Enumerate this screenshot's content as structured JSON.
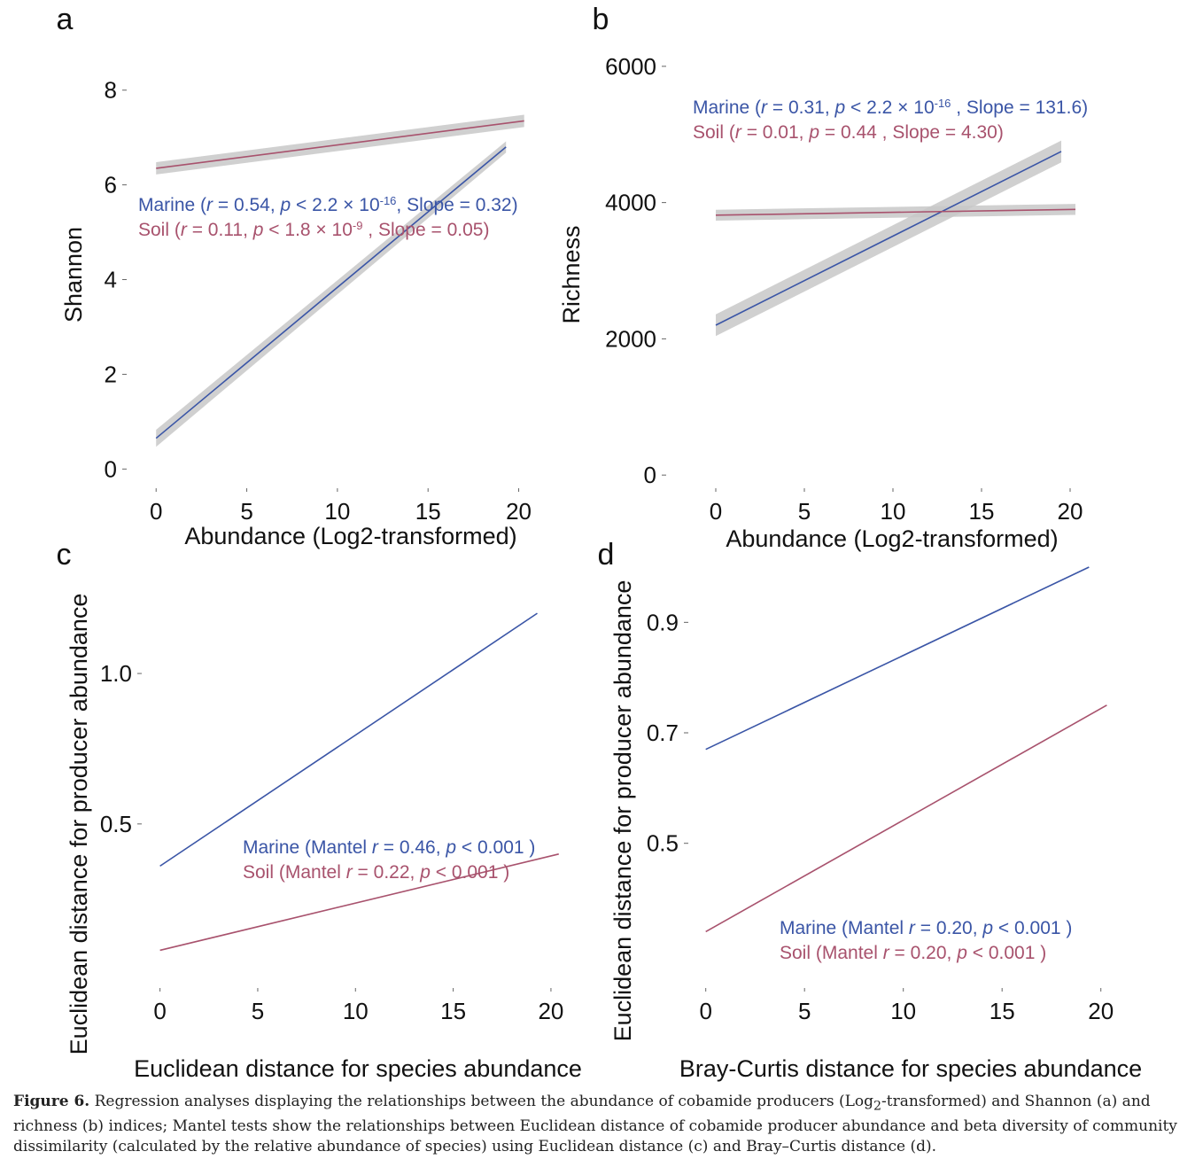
{
  "chart_data": [
    {
      "panel_label": "a",
      "type": "line",
      "xlabel": "Abundance (Log2-transformed)",
      "ylabel": "Shannon",
      "xlim": [
        -0.5,
        21
      ],
      "ylim": [
        -0.2,
        8.5
      ],
      "xticks": [
        0,
        5,
        10,
        15,
        20
      ],
      "yticks": [
        0,
        2,
        4,
        6,
        8
      ],
      "x_tick_labels": [
        "0",
        "5",
        "10",
        "15",
        "20"
      ],
      "y_tick_labels": [
        "0",
        "2",
        "4",
        "6",
        "8"
      ],
      "grid": false,
      "confidence_band": true,
      "series": [
        {
          "name": "Marine",
          "color": "#3a55a6",
          "x": [
            0,
            19.3
          ],
          "y": [
            0.65,
            6.8
          ],
          "band": [
            0.18,
            0.12
          ]
        },
        {
          "name": "Soil",
          "color": "#a8526d",
          "x": [
            0,
            20.3
          ],
          "y": [
            6.35,
            7.35
          ],
          "band": [
            0.13,
            0.13
          ]
        }
      ],
      "annotation": {
        "lines": [
          {
            "color": "#3a55a6",
            "parts": [
              {
                "t": "Marine ("
              },
              {
                "t": "r",
                "it": true
              },
              {
                "t": " = 0.54, "
              },
              {
                "t": "p",
                "it": true
              },
              {
                "t": " < 2.2 × 10"
              },
              {
                "t": "-16",
                "sup": true
              },
              {
                "t": ", Slope = 0.32)"
              }
            ]
          },
          {
            "color": "#a8526d",
            "parts": [
              {
                "t": "Soil ("
              },
              {
                "t": "r",
                "it": true
              },
              {
                "t": " = 0.11, "
              },
              {
                "t": "p",
                "it": true
              },
              {
                "t": " < 1.8 × 10"
              },
              {
                "t": "-9",
                "sup": true
              },
              {
                "t": " , Slope = 0.05)"
              }
            ]
          }
        ]
      }
    },
    {
      "panel_label": "b",
      "type": "line",
      "xlabel": "Abundance (Log2-transformed)",
      "ylabel": "Richness",
      "xlim": [
        -0.5,
        21
      ],
      "ylim": [
        -50,
        6050
      ],
      "xticks": [
        0,
        5,
        10,
        15,
        20
      ],
      "yticks": [
        0,
        2000,
        4000,
        6000
      ],
      "x_tick_labels": [
        "0",
        "5",
        "10",
        "15",
        "20"
      ],
      "y_tick_labels": [
        "0",
        "2000",
        "4000",
        "6000"
      ],
      "grid": false,
      "confidence_band": true,
      "series": [
        {
          "name": "Marine",
          "color": "#3a55a6",
          "x": [
            0,
            19.5
          ],
          "y": [
            2200,
            4750
          ],
          "band": [
            160,
            160
          ]
        },
        {
          "name": "Soil",
          "color": "#a8526d",
          "x": [
            0,
            20.3
          ],
          "y": [
            3815,
            3900
          ],
          "band": [
            80,
            80
          ]
        }
      ],
      "annotation": {
        "lines": [
          {
            "color": "#3a55a6",
            "parts": [
              {
                "t": "Marine ("
              },
              {
                "t": "r",
                "it": true
              },
              {
                "t": " = 0.31, "
              },
              {
                "t": "p",
                "it": true
              },
              {
                "t": " < 2.2 × 10"
              },
              {
                "t": "-16",
                "sup": true
              },
              {
                "t": " , Slope = 131.6)"
              }
            ]
          },
          {
            "color": "#a8526d",
            "parts": [
              {
                "t": "Soil ("
              },
              {
                "t": "r",
                "it": true
              },
              {
                "t": " = 0.01, "
              },
              {
                "t": "p",
                "it": true
              },
              {
                "t": " = 0.44 , Slope = 4.30)"
              }
            ]
          }
        ]
      }
    },
    {
      "panel_label": "c",
      "type": "line",
      "xlabel": "Euclidean distance for species abundance",
      "ylabel": "Euclidean distance for producer abundance",
      "xlim": [
        -0.3,
        21
      ],
      "ylim": [
        -0.06,
        1.33
      ],
      "xticks": [
        0,
        5,
        10,
        15,
        20
      ],
      "yticks": [
        0.5,
        1.0
      ],
      "x_tick_labels": [
        "0",
        "5",
        "10",
        "15",
        "20"
      ],
      "y_tick_labels": [
        "0.5",
        "1.0"
      ],
      "grid": false,
      "confidence_band": false,
      "series": [
        {
          "name": "Marine",
          "color": "#3a55a6",
          "x": [
            0,
            19.3
          ],
          "y": [
            0.36,
            1.2
          ]
        },
        {
          "name": "Soil",
          "color": "#a8526d",
          "x": [
            0,
            20.4
          ],
          "y": [
            0.08,
            0.4
          ]
        }
      ],
      "annotation": {
        "lines": [
          {
            "color": "#3a55a6",
            "parts": [
              {
                "t": "Marine (Mantel "
              },
              {
                "t": "r",
                "it": true
              },
              {
                "t": " = 0.46, "
              },
              {
                "t": "p",
                "it": true
              },
              {
                "t": " < 0.001 )"
              }
            ]
          },
          {
            "color": "#a8526d",
            "parts": [
              {
                "t": "Soil (Mantel "
              },
              {
                "t": "r",
                "it": true
              },
              {
                "t": " = 0.22, "
              },
              {
                "t": "p",
                "it": true
              },
              {
                "t": " < 0.001 )"
              }
            ]
          }
        ]
      }
    },
    {
      "panel_label": "d",
      "type": "line",
      "xlabel": "Bray-Curtis distance for species abundance",
      "ylabel": "Euclidean distance for producer abundance",
      "xlim": [
        -0.3,
        21
      ],
      "ylim": [
        0.23,
        1.0
      ],
      "xticks": [
        0,
        5,
        10,
        15,
        20
      ],
      "yticks": [
        0.5,
        0.7,
        0.9
      ],
      "x_tick_labels": [
        "0",
        "5",
        "10",
        "15",
        "20"
      ],
      "y_tick_labels": [
        "0.5",
        "0.7",
        "0.9"
      ],
      "grid": false,
      "confidence_band": false,
      "series": [
        {
          "name": "Marine",
          "color": "#3a55a6",
          "x": [
            0,
            19.4
          ],
          "y": [
            0.67,
            1.0
          ]
        },
        {
          "name": "Soil",
          "color": "#a8526d",
          "x": [
            0,
            20.3
          ],
          "y": [
            0.34,
            0.75
          ]
        }
      ],
      "annotation": {
        "lines": [
          {
            "color": "#3a55a6",
            "parts": [
              {
                "t": "Marine (Mantel "
              },
              {
                "t": "r",
                "it": true
              },
              {
                "t": " = 0.20, "
              },
              {
                "t": "p",
                "it": true
              },
              {
                "t": " < 0.001 )"
              }
            ]
          },
          {
            "color": "#a8526d",
            "parts": [
              {
                "t": "Soil (Mantel "
              },
              {
                "t": "r",
                "it": true
              },
              {
                "t": " = 0.20, "
              },
              {
                "t": "p",
                "it": true
              },
              {
                "t": " < 0.001 )"
              }
            ]
          }
        ]
      }
    }
  ],
  "caption": {
    "label": "Figure 6.",
    "text_1": " Regression analyses displaying the relationships between the abundance of cobamide producers (Log",
    "sub": "2",
    "text_2": "-transformed) and Shannon (a) and richness (b) indices; Mantel tests show the relationships between Euclidean distance of cobamide producer abundance and beta diversity of community dissimilarity (calculated by the relative abundance of species) using Euclidean distance (c) and Bray–Curtis distance (d)."
  }
}
